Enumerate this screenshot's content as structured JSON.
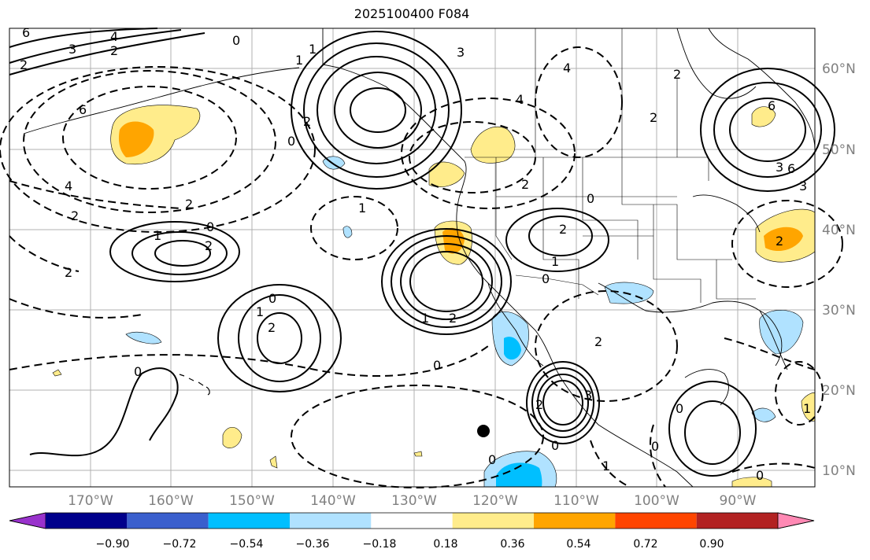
{
  "title": "2025100400 F084",
  "latitude_labels": [
    "60°N",
    "50°N",
    "40°N",
    "30°N",
    "20°N",
    "10°N"
  ],
  "longitude_labels": [
    "170°W",
    "160°W",
    "150°W",
    "140°W",
    "130°W",
    "120°W",
    "110°W",
    "100°W",
    "90°W"
  ],
  "colorbar": {
    "tick_labels": [
      "−0.90",
      "−0.72",
      "−0.54",
      "−0.36",
      "−0.18",
      "0.18",
      "0.36",
      "0.54",
      "0.72",
      "0.90"
    ],
    "colors": [
      "#9932cc",
      "#00008b",
      "#3a5fcd",
      "#00bfff",
      "#b0e2ff",
      "#ffffff",
      "#ffec8b",
      "#ffa500",
      "#ff4500",
      "#b22222",
      "#ff89b4"
    ],
    "extend": "both"
  },
  "contour_labels": [
    "6",
    "4",
    "3",
    "2",
    "0",
    "1",
    "1",
    "2",
    "3",
    "4",
    "6",
    "4",
    "6",
    "2",
    "0",
    "2",
    "6",
    "3",
    "2",
    "4",
    "1",
    "0",
    "2",
    "2",
    "1",
    "0",
    "2",
    "2",
    "0",
    "1",
    "2",
    "2",
    "0",
    "1",
    "2",
    "1",
    "0",
    "0",
    "2",
    "3",
    "0",
    "2",
    "1",
    "0",
    "0",
    "0",
    "1",
    "2",
    "0",
    "2",
    "3"
  ],
  "marker": {
    "lon": -120.5,
    "lat": 15
  },
  "colors": {
    "land": "#000000",
    "grid": "#b0b0b0",
    "label_gray": "#808080"
  }
}
